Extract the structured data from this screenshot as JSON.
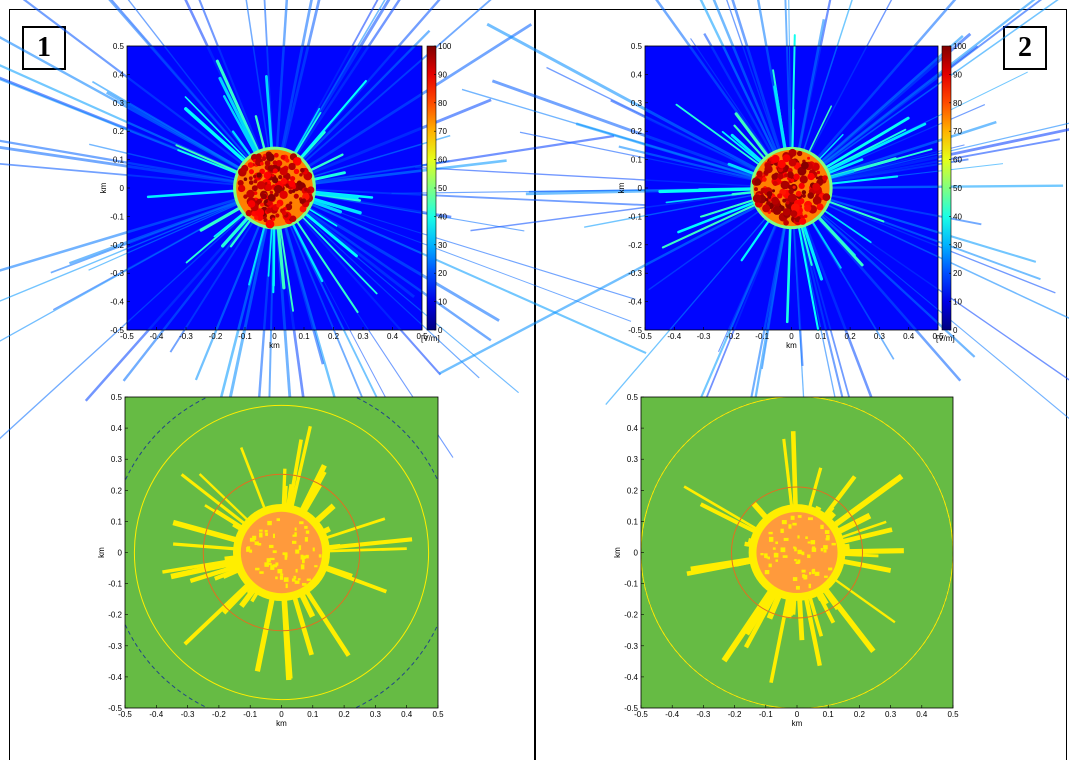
{
  "panels": [
    {
      "label": "1"
    },
    {
      "label": "2"
    }
  ],
  "colorbar": {
    "ticks": [
      "0",
      "10",
      "20",
      "30",
      "40",
      "50",
      "60",
      "70",
      "80",
      "90",
      "100"
    ],
    "unit": "[V/m]",
    "range": [
      0,
      100
    ]
  },
  "chart_data": [
    {
      "type": "heatmap",
      "panel": "1",
      "position": "top",
      "xlabel": "km",
      "ylabel": "km",
      "xlim": [
        -0.5,
        0.5
      ],
      "ylim": [
        -0.5,
        0.5
      ],
      "xticks": [
        "-0.5",
        "-0.4",
        "-0.3",
        "-0.2",
        "-0.1",
        "0",
        "0.1",
        "0.2",
        "0.3",
        "0.4",
        "0.5"
      ],
      "yticks": [
        "-0.5",
        "-0.4",
        "-0.3",
        "-0.2",
        "-0.1",
        "0",
        "0.1",
        "0.2",
        "0.3",
        "0.4",
        "0.5"
      ],
      "colorbar_range": [
        0,
        100
      ],
      "colorbar_unit": "[V/m]",
      "core_radius_km": 0.13,
      "seed": 7
    },
    {
      "type": "heatmap",
      "panel": "2",
      "position": "top",
      "xlabel": "km",
      "ylabel": "km",
      "xlim": [
        -0.5,
        0.5
      ],
      "ylim": [
        -0.5,
        0.5
      ],
      "xticks": [
        "-0.5",
        "-0.4",
        "-0.3",
        "-0.2",
        "-0.1",
        "0",
        "0.1",
        "0.2",
        "0.3",
        "0.4",
        "0.5"
      ],
      "yticks": [
        "-0.5",
        "-0.4",
        "-0.3",
        "-0.2",
        "-0.1",
        "0",
        "0.1",
        "0.2",
        "0.3",
        "0.4",
        "0.5"
      ],
      "colorbar_range": [
        0,
        100
      ],
      "colorbar_unit": "[V/m]",
      "core_radius_km": 0.13,
      "seed": 13
    },
    {
      "type": "heatmap",
      "panel": "1",
      "position": "bottom",
      "xlabel": "km",
      "ylabel": "km",
      "xlim": [
        -0.5,
        0.5
      ],
      "ylim": [
        -0.5,
        0.5
      ],
      "xticks": [
        "-0.5",
        "-0.4",
        "-0.3",
        "-0.2",
        "-0.1",
        "0",
        "0.1",
        "0.2",
        "0.3",
        "0.4",
        "0.5"
      ],
      "yticks": [
        "-0.5",
        "-0.4",
        "-0.3",
        "-0.2",
        "-0.1",
        "0",
        "0.1",
        "0.2",
        "0.3",
        "0.4",
        "0.5"
      ],
      "background_color": "#66bb44",
      "zone_colors": [
        "#ffee00",
        "#ff9a3c"
      ],
      "circles": [
        {
          "radius_km": 0.25,
          "color": "#e07020",
          "style": "solid"
        },
        {
          "radius_km": 0.47,
          "color": "#ffee00",
          "style": "solid"
        },
        {
          "radius_km": 0.55,
          "color": "#224488",
          "style": "dashed"
        }
      ],
      "seed": 7
    },
    {
      "type": "heatmap",
      "panel": "2",
      "position": "bottom",
      "xlabel": "km",
      "ylabel": "km",
      "xlim": [
        -0.5,
        0.5
      ],
      "ylim": [
        -0.5,
        0.5
      ],
      "xticks": [
        "-0.5",
        "-0.4",
        "-0.3",
        "-0.2",
        "-0.1",
        "0",
        "0.1",
        "0.2",
        "0.3",
        "0.4",
        "0.5"
      ],
      "yticks": [
        "-0.5",
        "-0.4",
        "-0.3",
        "-0.2",
        "-0.1",
        "0",
        "0.1",
        "0.2",
        "0.3",
        "0.4",
        "0.5"
      ],
      "background_color": "#66bb44",
      "zone_colors": [
        "#ffee00",
        "#ff9a3c"
      ],
      "circles": [
        {
          "radius_km": 0.21,
          "color": "#e07020",
          "style": "solid"
        },
        {
          "radius_km": 0.5,
          "color": "#224488",
          "style": "dashed"
        },
        {
          "radius_km": 0.5,
          "color": "#ffee00",
          "style": "solid"
        }
      ],
      "seed": 13
    }
  ]
}
